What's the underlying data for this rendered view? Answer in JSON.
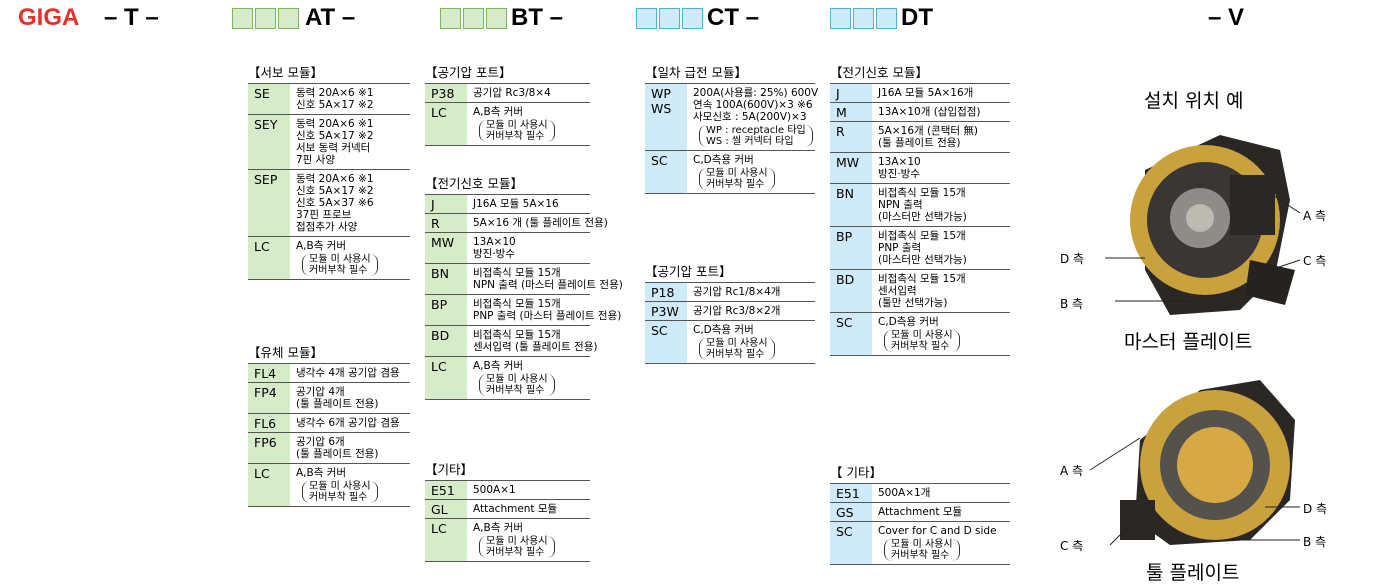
{
  "header": {
    "brand": "GIGA",
    "model": "– T –",
    "segments": [
      {
        "label": "AT –",
        "color": "#d6ecc8",
        "border": "#7cb95a"
      },
      {
        "label": "BT –",
        "color": "#d6ecc8",
        "border": "#7cb95a"
      },
      {
        "label": "CT –",
        "color": "#cfeaf8",
        "border": "#4fb1de"
      },
      {
        "label": "DT",
        "color": "#cfeaf8",
        "border": "#4fb1de"
      }
    ],
    "suffix": "– V"
  },
  "columns": [
    {
      "color": "#d6ecc8",
      "groups": [
        {
          "title": "【서보 모듈】",
          "rows": [
            {
              "codes": [
                "SE"
              ],
              "lines": [
                "동력 20A×6 ※1",
                "신호 5A×17 ※2"
              ]
            },
            {
              "codes": [
                "SEY"
              ],
              "lines": [
                "동력 20A×6 ※1",
                "신호 5A×17 ※2",
                "서보 동력 커넥터",
                "7핀 사양"
              ]
            },
            {
              "codes": [
                "SEP"
              ],
              "lines": [
                "동력 20A×6 ※1",
                "신호 5A×17 ※2",
                "신호 5A×37 ※6",
                "37핀 프로브",
                "접점추가 사양"
              ]
            },
            {
              "codes": [
                "LC"
              ],
              "lines": [
                "A,B측 커버"
              ],
              "note": [
                "모듈 미 사용시",
                "커버부착 필수"
              ]
            }
          ]
        },
        {
          "title": "【유체 모듈】",
          "rows": [
            {
              "codes": [
                "FL4"
              ],
              "lines": [
                "냉각수 4개 공기압 겸용"
              ]
            },
            {
              "codes": [
                "FP4"
              ],
              "lines": [
                "공기압 4개",
                "(툴 플레이트 전용)"
              ]
            },
            {
              "codes": [
                "FL6"
              ],
              "lines": [
                "냉각수 6개 공기압 겸용"
              ]
            },
            {
              "codes": [
                "FP6"
              ],
              "lines": [
                "공기압 6개",
                "(툴 플레이트 전용)"
              ]
            },
            {
              "codes": [
                "LC"
              ],
              "lines": [
                "A,B측 커버"
              ],
              "note": [
                "모듈 미 사용시",
                "커버부착 필수"
              ]
            }
          ]
        }
      ]
    },
    {
      "color": "#d6ecc8",
      "groups": [
        {
          "title": "【공기압 포트】",
          "rows": [
            {
              "codes": [
                "P38"
              ],
              "lines": [
                "공기압 Rc3/8×4"
              ]
            },
            {
              "codes": [
                "LC"
              ],
              "lines": [
                "A,B측 커버"
              ],
              "note": [
                "모듈 미 사용시",
                "커버부착 필수"
              ]
            }
          ]
        },
        {
          "title": "【전기신호 모듈】",
          "rows": [
            {
              "codes": [
                "J"
              ],
              "lines": [
                "J16A 모듈  5A×16"
              ]
            },
            {
              "codes": [
                "R"
              ],
              "lines": [
                "5A×16 개 (툴 플레이트 전용)"
              ]
            },
            {
              "codes": [
                "MW"
              ],
              "lines": [
                "13A×10",
                "방진·방수"
              ]
            },
            {
              "codes": [
                "BN"
              ],
              "lines": [
                "비접촉식 모듈 15개",
                "NPN 출력 (마스터 플레이트 전용)"
              ]
            },
            {
              "codes": [
                "BP"
              ],
              "lines": [
                "비접촉식 모듈 15개",
                "PNP 출력 (마스터 플레이트 전용)"
              ]
            },
            {
              "codes": [
                "BD"
              ],
              "lines": [
                "비접촉식 모듈 15개",
                "센서입력 (툴 플레이트 전용)"
              ]
            },
            {
              "codes": [
                "LC"
              ],
              "lines": [
                "A,B측 커버"
              ],
              "note": [
                "모듈 미 사용시",
                "커버부착 필수"
              ]
            }
          ]
        },
        {
          "title": "【기타】",
          "rows": [
            {
              "codes": [
                "E51"
              ],
              "lines": [
                "500A×1"
              ]
            },
            {
              "codes": [
                "GL"
              ],
              "lines": [
                "Attachment 모듈"
              ]
            },
            {
              "codes": [
                "LC"
              ],
              "lines": [
                "A,B측 커버"
              ],
              "note": [
                "모듈 미 사용시",
                "커버부착 필수"
              ]
            }
          ]
        }
      ]
    },
    {
      "color": "#cfeaf8",
      "groups": [
        {
          "title": "【일차 급전 모듈】",
          "rows": [
            {
              "codes": [
                "WP",
                "WS"
              ],
              "lines": [
                "200A(사용률: 25%) 600V",
                "연속 100A(600V)×3 ※6",
                "사모신호 : 5A(200V)×3"
              ],
              "note": [
                "WP : receptacle 타입",
                "WS : 씰 커넥터 타입"
              ]
            },
            {
              "codes": [
                "SC"
              ],
              "lines": [
                "C,D측용 커버"
              ],
              "note": [
                "모듈 미 사용시",
                "커버부착 필수"
              ]
            }
          ]
        },
        {
          "title": "【공기압 포트】",
          "rows": [
            {
              "codes": [
                "P18"
              ],
              "lines": [
                "공기압 Rc1/8×4개"
              ]
            },
            {
              "codes": [
                "P3W"
              ],
              "lines": [
                "공기압 Rc3/8×2개"
              ]
            },
            {
              "codes": [
                "SC"
              ],
              "lines": [
                "C,D측용 커버"
              ],
              "note": [
                "모듈 미 사용시",
                "커버부착 필수"
              ]
            }
          ]
        }
      ]
    },
    {
      "color": "#cfeaf8",
      "groups": [
        {
          "title": "【전기신호 모듈】",
          "rows": [
            {
              "codes": [
                "J"
              ],
              "lines": [
                "J16A 모듈  5A×16개"
              ]
            },
            {
              "codes": [
                "M"
              ],
              "lines": [
                "13A×10개 (삽입접점)"
              ]
            },
            {
              "codes": [
                "R"
              ],
              "lines": [
                "5A×16개 (콘택터 無)",
                "(툴 플레이트 전용)"
              ]
            },
            {
              "codes": [
                "MW"
              ],
              "lines": [
                "13A×10",
                "방진·방수"
              ]
            },
            {
              "codes": [
                "BN"
              ],
              "lines": [
                "비접촉식 모듈 15개",
                "NPN 출력",
                "(마스터만 선택가능)"
              ]
            },
            {
              "codes": [
                "BP"
              ],
              "lines": [
                "비접촉식 모듈 15개",
                "PNP 출력",
                "(마스터만 선택가능)"
              ]
            },
            {
              "codes": [
                "BD"
              ],
              "lines": [
                "비접촉식 모듈 15개",
                "센서입력",
                "(툴만 선택가능)"
              ]
            },
            {
              "codes": [
                "SC"
              ],
              "lines": [
                "C,D측용 커버"
              ],
              "note": [
                "모듈 미 사용시",
                "커버부착 필수"
              ]
            }
          ]
        },
        {
          "title": "【 기타】",
          "rows": [
            {
              "codes": [
                "E51"
              ],
              "lines": [
                "500A×1개"
              ]
            },
            {
              "codes": [
                "GS"
              ],
              "lines": [
                "Attachment 모듈"
              ]
            },
            {
              "codes": [
                "SC"
              ],
              "lines": [
                "Cover for C and D side"
              ],
              "note": [
                "모듈 미 사용시",
                "커버부착 필수"
              ]
            }
          ]
        }
      ]
    }
  ],
  "example": {
    "title": "설치 위치 예",
    "master": {
      "caption": "마스터 플레이트",
      "labels": [
        "A 측",
        "D 측",
        "C 측",
        "B 측"
      ]
    },
    "tool": {
      "caption": "툴 플레이트",
      "labels": [
        "A 측",
        "D 측",
        "C 측",
        "B 측"
      ]
    }
  }
}
